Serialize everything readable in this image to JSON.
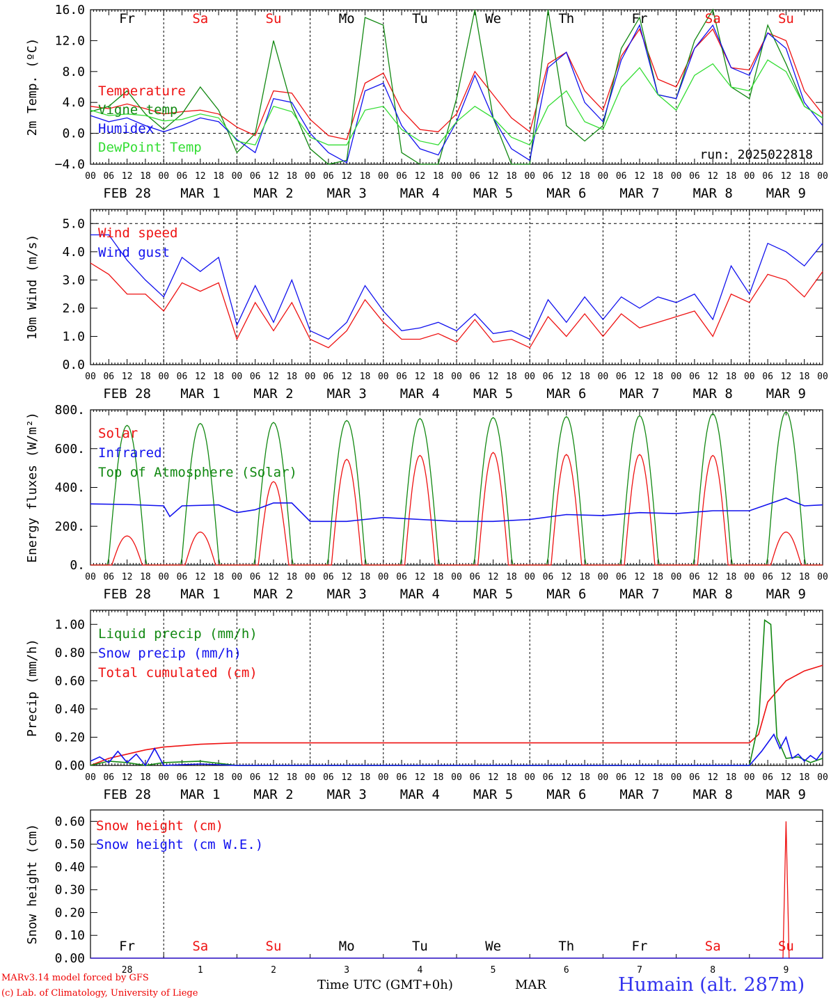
{
  "meta": {
    "run": "run: 2025022818",
    "credits": [
      "MARv3.14 model forced by GFS",
      "(c) Lab. of Climatology, University of Liege"
    ],
    "time_label": "Time UTC (GMT+0h)",
    "month_label": "MAR",
    "station": "Humain (alt. 287m)"
  },
  "colors": {
    "red": "#ee1111",
    "blue": "#1111ee",
    "dkgreen": "#118811",
    "ltgreen": "#33dd33",
    "weekday": "#000000",
    "weekend": "#ee1111"
  },
  "axis": {
    "x_hour_ticks": [
      "00",
      "06",
      "12",
      "18"
    ],
    "dates": [
      "FEB 28",
      "MAR  1",
      "MAR  2",
      "MAR  3",
      "MAR  4",
      "MAR  5",
      "MAR  6",
      "MAR  7",
      "MAR  8",
      "MAR  9"
    ],
    "weekdays": [
      {
        "label": "Fr",
        "weekend": false
      },
      {
        "label": "Sa",
        "weekend": true
      },
      {
        "label": "Su",
        "weekend": true
      },
      {
        "label": "Mo",
        "weekend": false
      },
      {
        "label": "Tu",
        "weekend": false
      },
      {
        "label": "We",
        "weekend": false
      },
      {
        "label": "Th",
        "weekend": false
      },
      {
        "label": "Fr",
        "weekend": false
      },
      {
        "label": "Sa",
        "weekend": true
      },
      {
        "label": "Su",
        "weekend": true
      }
    ],
    "day_numbers": [
      "28",
      "1",
      "2",
      "3",
      "4",
      "5",
      "6",
      "7",
      "8",
      "9"
    ]
  },
  "chart_data": [
    {
      "type": "line",
      "id": "temp",
      "ylabel": "2m Temp. (ºC)",
      "ylim": [
        -4,
        16
      ],
      "yticks": [
        16,
        12,
        8,
        4,
        0,
        -4
      ],
      "ytick_labels": [
        "16.0",
        "12.0",
        "8.0",
        "4.0",
        "0.0",
        "−4.0"
      ],
      "x_unit": "hours since FEB 28 00 UTC",
      "xlim": [
        0,
        240
      ],
      "dashed_y": [
        0
      ],
      "legend": [
        "Temperature",
        "Vigne temp",
        "Humidex",
        "DewPoint Temp"
      ],
      "series": [
        {
          "name": "Temperature",
          "color": "red",
          "x": [
            0,
            6,
            12,
            18,
            24,
            30,
            36,
            42,
            48,
            54,
            60,
            66,
            72,
            78,
            84,
            90,
            96,
            102,
            108,
            114,
            120,
            126,
            132,
            138,
            144,
            150,
            156,
            162,
            168,
            174,
            180,
            186,
            192,
            198,
            204,
            210,
            216,
            222,
            228,
            234,
            240
          ],
          "y": [
            3.5,
            3.2,
            3.8,
            3.2,
            2.5,
            2.8,
            3.0,
            2.5,
            0.8,
            -0.3,
            5.5,
            5.2,
            1.8,
            -0.3,
            -0.8,
            6.5,
            7.8,
            3.0,
            0.5,
            0.2,
            2.5,
            8.0,
            5.0,
            2.0,
            0.2,
            9.0,
            10.5,
            5.5,
            3.0,
            10.0,
            13.5,
            7.0,
            6.0,
            11.0,
            13.5,
            8.5,
            8.2,
            13.0,
            12.0,
            5.5,
            2.5
          ]
        },
        {
          "name": "Vigne temp",
          "color": "dkgreen",
          "x": [
            0,
            6,
            12,
            18,
            24,
            30,
            36,
            42,
            48,
            54,
            60,
            66,
            72,
            78,
            84,
            90,
            96,
            102,
            108,
            114,
            120,
            126,
            132,
            138,
            144,
            150,
            156,
            162,
            168,
            174,
            180,
            186,
            192,
            198,
            204,
            210,
            216,
            222,
            228,
            234,
            240
          ],
          "y": [
            2.8,
            3.5,
            5.5,
            2.5,
            0.5,
            2.5,
            6.0,
            3.0,
            -2.5,
            0.0,
            12.0,
            3.5,
            -2.0,
            -4.5,
            -3.5,
            15.0,
            14.0,
            -2.5,
            -4.8,
            -4.5,
            4.5,
            16.0,
            2.0,
            -4.5,
            -5.0,
            16.0,
            1.0,
            -1.0,
            1.0,
            11.0,
            15.0,
            5.0,
            4.5,
            12.0,
            16.0,
            6.0,
            4.5,
            14.0,
            9.0,
            3.5,
            2.0
          ]
        },
        {
          "name": "Humidex",
          "color": "blue",
          "x": [
            0,
            6,
            12,
            18,
            24,
            30,
            36,
            42,
            48,
            54,
            60,
            66,
            72,
            78,
            84,
            90,
            96,
            102,
            108,
            114,
            120,
            126,
            132,
            138,
            144,
            150,
            156,
            162,
            168,
            174,
            180,
            186,
            192,
            198,
            204,
            210,
            216,
            222,
            228,
            234,
            240
          ],
          "y": [
            2.3,
            1.5,
            2.0,
            1.0,
            0.2,
            1.0,
            2.0,
            1.5,
            -0.8,
            -2.5,
            4.5,
            4.0,
            0.0,
            -2.5,
            -3.8,
            5.5,
            6.5,
            1.0,
            -2.0,
            -2.8,
            1.5,
            7.5,
            2.0,
            -2.0,
            -3.5,
            8.5,
            10.5,
            4.0,
            1.5,
            9.5,
            14.0,
            5.0,
            4.5,
            11.0,
            14.0,
            8.5,
            7.5,
            13.0,
            11.0,
            4.0,
            1.0
          ]
        },
        {
          "name": "DewPoint Temp",
          "color": "ltgreen",
          "x": [
            0,
            6,
            12,
            18,
            24,
            30,
            36,
            42,
            48,
            54,
            60,
            66,
            72,
            78,
            84,
            90,
            96,
            102,
            108,
            114,
            120,
            126,
            132,
            138,
            144,
            150,
            156,
            162,
            168,
            174,
            180,
            186,
            192,
            198,
            204,
            210,
            216,
            222,
            228,
            234,
            240
          ],
          "y": [
            3.0,
            2.3,
            2.5,
            2.3,
            1.6,
            1.8,
            2.5,
            2.0,
            -1.0,
            -1.5,
            3.5,
            2.8,
            -0.5,
            -1.5,
            -1.5,
            3.0,
            3.5,
            0.5,
            -1.0,
            -1.5,
            1.5,
            3.5,
            2.0,
            -0.5,
            -1.5,
            3.5,
            5.5,
            1.5,
            0.5,
            6.0,
            8.5,
            5.0,
            3.0,
            7.5,
            9.0,
            6.0,
            5.5,
            9.5,
            8.0,
            3.5,
            2.0
          ]
        }
      ]
    },
    {
      "type": "line",
      "id": "wind",
      "ylabel": "10m Wind (m/s)",
      "ylim": [
        0,
        5.5
      ],
      "yticks": [
        5,
        4,
        3,
        2,
        1,
        0
      ],
      "ytick_labels": [
        "5.0",
        "4.0",
        "3.0",
        "2.0",
        "1.0",
        "0.0"
      ],
      "xlim": [
        0,
        240
      ],
      "dashed_y": [
        5
      ],
      "legend": [
        "Wind speed",
        "Wind gust"
      ],
      "series": [
        {
          "name": "Wind speed",
          "color": "red",
          "x": [
            0,
            6,
            12,
            18,
            24,
            30,
            36,
            42,
            48,
            54,
            60,
            66,
            72,
            78,
            84,
            90,
            96,
            102,
            108,
            114,
            120,
            126,
            132,
            138,
            144,
            150,
            156,
            162,
            168,
            174,
            180,
            186,
            192,
            198,
            204,
            210,
            216,
            222,
            228,
            234,
            240
          ],
          "y": [
            3.6,
            3.2,
            2.5,
            2.5,
            1.9,
            2.9,
            2.6,
            2.9,
            0.9,
            2.2,
            1.2,
            2.2,
            0.9,
            0.6,
            1.2,
            2.3,
            1.5,
            0.9,
            0.9,
            1.1,
            0.8,
            1.6,
            0.8,
            0.9,
            0.6,
            1.7,
            1.0,
            1.8,
            1.0,
            1.8,
            1.3,
            1.5,
            1.7,
            1.9,
            1.0,
            2.5,
            2.2,
            3.2,
            3.0,
            2.4,
            3.3
          ]
        },
        {
          "name": "Wind gust",
          "color": "blue",
          "x": [
            0,
            6,
            12,
            18,
            24,
            30,
            36,
            42,
            48,
            54,
            60,
            66,
            72,
            78,
            84,
            90,
            96,
            102,
            108,
            114,
            120,
            126,
            132,
            138,
            144,
            150,
            156,
            162,
            168,
            174,
            180,
            186,
            192,
            198,
            204,
            210,
            216,
            222,
            228,
            234,
            240
          ],
          "y": [
            4.6,
            4.6,
            3.7,
            3.0,
            2.4,
            3.8,
            3.3,
            3.8,
            1.4,
            2.8,
            1.5,
            3.0,
            1.2,
            0.9,
            1.5,
            2.8,
            1.9,
            1.2,
            1.3,
            1.5,
            1.2,
            1.8,
            1.1,
            1.2,
            0.9,
            2.3,
            1.5,
            2.4,
            1.6,
            2.4,
            2.0,
            2.4,
            2.2,
            2.5,
            1.6,
            3.5,
            2.5,
            4.3,
            4.0,
            3.5,
            4.3
          ]
        }
      ]
    },
    {
      "type": "line",
      "id": "energy",
      "ylabel": "Energy fluxes (W/m²)",
      "ylim": [
        0,
        800
      ],
      "yticks": [
        800,
        600,
        400,
        200,
        0
      ],
      "ytick_labels": [
        "800.",
        "600.",
        "400.",
        "200.",
        "0."
      ],
      "xlim": [
        0,
        240
      ],
      "legend": [
        "Solar",
        "Infrared",
        "Top of Atmosphere (Solar)"
      ],
      "toa_peaks": [
        720,
        730,
        735,
        745,
        755,
        760,
        765,
        770,
        780,
        790
      ],
      "solar_peaks": [
        150,
        170,
        430,
        545,
        565,
        580,
        570,
        570,
        565,
        170
      ],
      "series": [
        {
          "name": "Infrared",
          "color": "blue",
          "x": [
            0,
            12,
            24,
            26,
            30,
            42,
            48,
            54,
            60,
            66,
            72,
            78,
            84,
            96,
            108,
            120,
            132,
            144,
            156,
            168,
            180,
            192,
            204,
            216,
            228,
            230,
            234,
            240
          ],
          "y": [
            315,
            312,
            305,
            250,
            305,
            310,
            270,
            285,
            320,
            320,
            225,
            225,
            225,
            245,
            235,
            225,
            225,
            235,
            260,
            255,
            270,
            265,
            280,
            280,
            345,
            330,
            305,
            310
          ]
        }
      ]
    },
    {
      "type": "line",
      "id": "precip",
      "ylabel": "Precip (mm/h)",
      "ylim": [
        0,
        1.1
      ],
      "yticks": [
        1.0,
        0.8,
        0.6,
        0.4,
        0.2,
        0.0
      ],
      "ytick_labels": [
        "1.00",
        "0.80",
        "0.60",
        "0.40",
        "0.20",
        "0.00"
      ],
      "xlim": [
        0,
        240
      ],
      "legend": [
        "Liquid precip (mm/h)",
        "Snow precip (mm/h)",
        "Total cumulated (cm)"
      ],
      "series": [
        {
          "name": "Total cumulated (cm)",
          "color": "red",
          "x": [
            0,
            6,
            12,
            18,
            24,
            36,
            48,
            60,
            72,
            96,
            120,
            144,
            168,
            192,
            216,
            219,
            222,
            228,
            234,
            240
          ],
          "y": [
            0.0,
            0.05,
            0.08,
            0.11,
            0.13,
            0.15,
            0.16,
            0.16,
            0.16,
            0.16,
            0.16,
            0.16,
            0.16,
            0.16,
            0.16,
            0.22,
            0.45,
            0.6,
            0.67,
            0.71
          ]
        },
        {
          "name": "Liquid precip (mm/h)",
          "color": "dkgreen",
          "x": [
            0,
            6,
            12,
            18,
            24,
            36,
            48,
            216,
            219,
            221,
            223,
            225,
            228,
            232,
            236,
            240
          ],
          "y": [
            0.0,
            0.03,
            0.02,
            0.0,
            0.02,
            0.03,
            0.0,
            0.0,
            0.3,
            1.03,
            1.0,
            0.2,
            0.05,
            0.06,
            0.02,
            0.05
          ]
        },
        {
          "name": "Snow precip (mm/h)",
          "color": "blue",
          "x": [
            0,
            3,
            6,
            9,
            12,
            15,
            18,
            21,
            24,
            36,
            48,
            216,
            220,
            224,
            226,
            228,
            230,
            232,
            234,
            236,
            238,
            240
          ],
          "y": [
            0.03,
            0.06,
            0.02,
            0.1,
            0.02,
            0.08,
            0.0,
            0.12,
            0.0,
            0.01,
            0.0,
            0.0,
            0.1,
            0.22,
            0.12,
            0.2,
            0.05,
            0.08,
            0.03,
            0.07,
            0.04,
            0.1
          ]
        }
      ]
    },
    {
      "type": "line",
      "id": "snow",
      "ylabel": "Snow height (cm)",
      "ylim": [
        0,
        0.65
      ],
      "yticks": [
        0.6,
        0.5,
        0.4,
        0.3,
        0.2,
        0.1,
        0.0
      ],
      "ytick_labels": [
        "0.60",
        "0.50",
        "0.40",
        "0.30",
        "0.20",
        "0.10",
        "0.00"
      ],
      "xlim": [
        0,
        240
      ],
      "legend": [
        "Snow height (cm)",
        "Snow height (cm W.E.)"
      ],
      "series": [
        {
          "name": "Snow height (cm)",
          "color": "red",
          "x": [
            0,
            227,
            228,
            229,
            240
          ],
          "y": [
            0,
            0,
            0.6,
            0,
            0
          ]
        },
        {
          "name": "Snow height (cm W.E.)",
          "color": "blue",
          "x": [
            0,
            240
          ],
          "y": [
            0,
            0
          ]
        }
      ]
    }
  ]
}
